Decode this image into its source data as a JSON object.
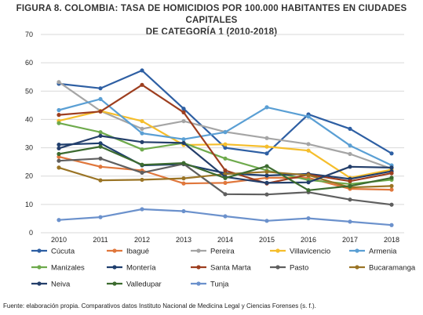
{
  "title_line1": "FIGURA 8. COLOMBIA: TASA DE HOMICIDIOS POR 100.000 HABITANTES EN CIUDADES CAPITALES",
  "title_line2": "DE CATEGORÍA 1 (2010-2018)",
  "source": "Fuente: elaboración propia. Comparativos datos Instituto Nacional de Medicina Legal y Ciencias Forenses (s. f.).",
  "chart_data": {
    "type": "line",
    "x": [
      "2010",
      "2011",
      "2012",
      "2013",
      "2014",
      "2015",
      "2016",
      "2017",
      "2018"
    ],
    "ylim": [
      0,
      70
    ],
    "yticks": [
      0,
      10,
      20,
      30,
      40,
      50,
      60,
      70
    ],
    "grid": true,
    "legend_position": "bottom",
    "series": [
      {
        "name": "Cúcuta",
        "color": "#2e5fa3",
        "values": [
          52.6,
          51.0,
          57.3,
          43.8,
          30.0,
          28.0,
          41.8,
          36.7,
          28.0
        ]
      },
      {
        "name": "Ibagué",
        "color": "#e0773c",
        "values": [
          26.8,
          23.3,
          22.0,
          17.4,
          17.6,
          19.4,
          19.4,
          15.5,
          15.2
        ]
      },
      {
        "name": "Pereira",
        "color": "#a5a5a5",
        "values": [
          53.2,
          43.0,
          36.7,
          39.4,
          35.6,
          33.4,
          31.3,
          27.8,
          22.6
        ]
      },
      {
        "name": "Villavicencio",
        "color": "#f5be2c",
        "values": [
          39.5,
          43.0,
          39.4,
          31.0,
          31.2,
          30.4,
          29.0,
          19.4,
          22.3
        ]
      },
      {
        "name": "Armenia",
        "color": "#5a9fd4",
        "values": [
          43.3,
          47.2,
          35.1,
          33.0,
          35.5,
          44.3,
          41.0,
          30.8,
          23.8
        ]
      },
      {
        "name": "Manizales",
        "color": "#6eaa4c",
        "values": [
          38.7,
          35.5,
          29.4,
          31.7,
          26.2,
          22.0,
          18.6,
          17.2,
          18.7
        ]
      },
      {
        "name": "Montería",
        "color": "#1f3f6e",
        "values": [
          31.1,
          31.6,
          23.8,
          24.2,
          21.0,
          20.2,
          20.8,
          19.0,
          21.7
        ]
      },
      {
        "name": "Santa Marta",
        "color": "#9d3e1f",
        "values": [
          41.6,
          42.8,
          52.2,
          42.5,
          22.0,
          17.4,
          20.5,
          18.2,
          21.0
        ]
      },
      {
        "name": "Pasto",
        "color": "#5f5f5f",
        "values": [
          25.4,
          26.2,
          21.2,
          24.3,
          13.6,
          13.5,
          14.3,
          11.7,
          9.9
        ]
      },
      {
        "name": "Bucaramanga",
        "color": "#9a7425",
        "values": [
          23.0,
          18.5,
          18.7,
          19.2,
          20.7,
          21.5,
          20.3,
          16.0,
          16.5
        ]
      },
      {
        "name": "Neiva",
        "color": "#243f6b",
        "values": [
          29.8,
          34.2,
          32.0,
          31.7,
          19.7,
          17.6,
          17.8,
          23.3,
          23.0
        ]
      },
      {
        "name": "Valledupar",
        "color": "#3c6b2f",
        "values": [
          27.8,
          30.4,
          24.0,
          24.6,
          19.3,
          23.5,
          15.0,
          16.5,
          19.4
        ]
      },
      {
        "name": "Tunja",
        "color": "#6b91cc",
        "values": [
          4.5,
          5.5,
          8.3,
          7.6,
          5.8,
          4.2,
          5.1,
          3.9,
          2.7
        ]
      }
    ]
  }
}
